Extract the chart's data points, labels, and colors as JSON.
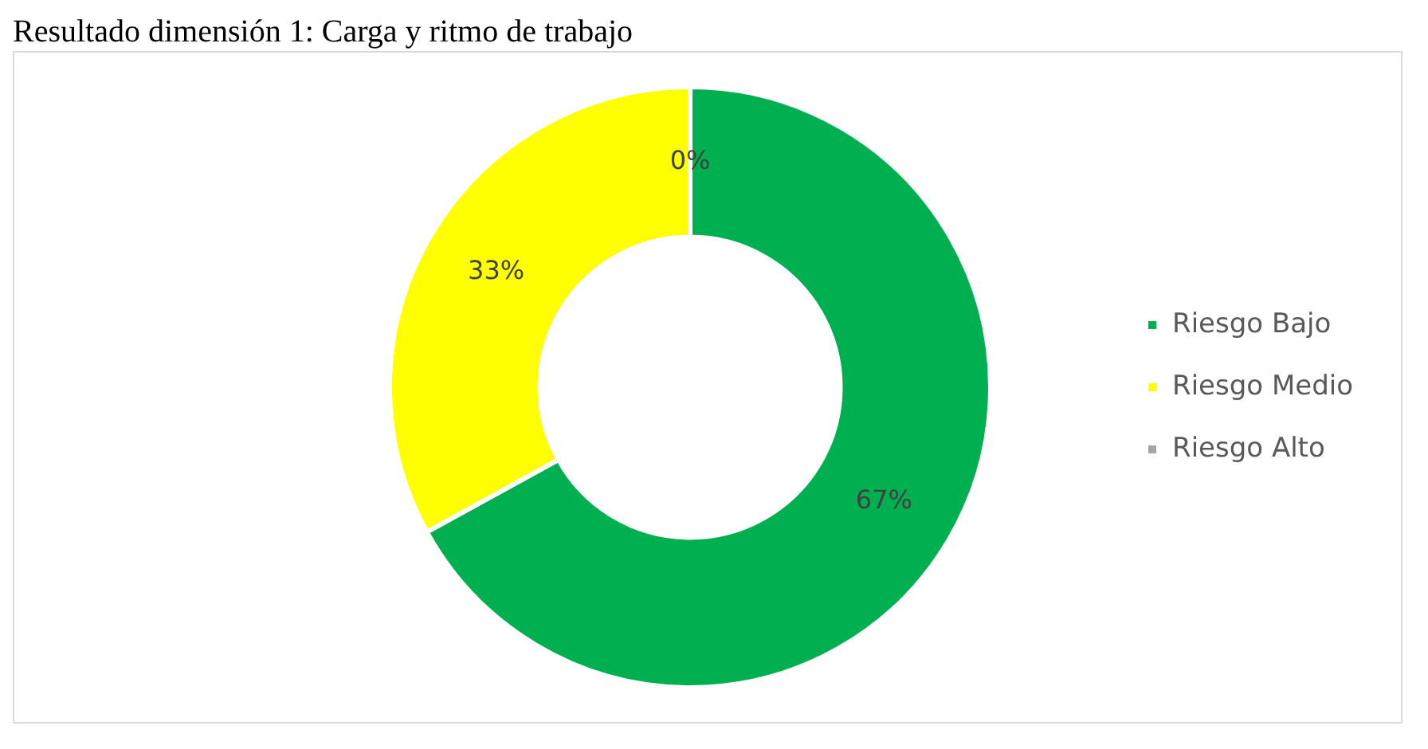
{
  "chart_data": {
    "type": "donut",
    "title": "Resultado dimensión 1: Carga y ritmo de trabajo",
    "categories": [
      "Riesgo Bajo",
      "Riesgo Medio",
      "Riesgo Alto"
    ],
    "values": [
      67,
      33,
      0
    ],
    "colors": [
      "#00b050",
      "#ffff00",
      "#a5a5a5"
    ],
    "value_labels": [
      "67%",
      "33%",
      "0%"
    ],
    "legend": "right"
  }
}
